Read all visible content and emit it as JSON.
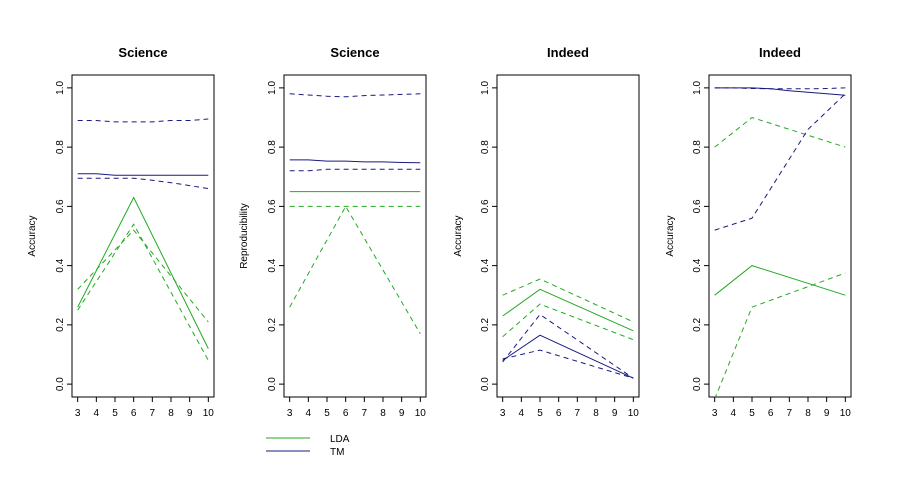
{
  "colors": {
    "LDA": "#22aa22",
    "TM": "#1a1a80"
  },
  "legend": {
    "placement": "bottom-left",
    "entries": [
      {
        "label": "LDA",
        "color": "#22aa22"
      },
      {
        "label": "TM",
        "color": "#1a1a80"
      }
    ]
  },
  "chart_data": [
    {
      "type": "line",
      "title": "Science",
      "xlabel": "",
      "ylabel": "Accuracy",
      "xticks": [
        3,
        4,
        5,
        6,
        7,
        8,
        9,
        10
      ],
      "yticks": [
        "0.0",
        "0.2",
        "0.4",
        "0.6",
        "0.8",
        "1.0"
      ],
      "xlim": [
        3,
        10
      ],
      "ylim": [
        0,
        1
      ],
      "series": [
        {
          "name": "LDA",
          "style": "solid",
          "color": "#22aa22",
          "x": [
            3,
            6,
            10
          ],
          "y": [
            0.26,
            0.63,
            0.12
          ]
        },
        {
          "name": "LDA",
          "style": "dashed",
          "color": "#22aa22",
          "x": [
            3,
            6,
            10
          ],
          "y": [
            0.32,
            0.52,
            0.21
          ]
        },
        {
          "name": "LDA",
          "style": "dashed",
          "color": "#22aa22",
          "x": [
            3,
            6,
            10
          ],
          "y": [
            0.25,
            0.54,
            0.08
          ]
        },
        {
          "name": "TM",
          "style": "solid",
          "color": "#1a1a80",
          "x": [
            3,
            4,
            5,
            6,
            7,
            8,
            9,
            10
          ],
          "y": [
            0.71,
            0.71,
            0.705,
            0.705,
            0.705,
            0.705,
            0.705,
            0.705
          ]
        },
        {
          "name": "TM",
          "style": "dashed",
          "color": "#1a1a80",
          "x": [
            3,
            4,
            5,
            6,
            7,
            8,
            9,
            10
          ],
          "y": [
            0.89,
            0.89,
            0.885,
            0.885,
            0.885,
            0.89,
            0.89,
            0.895
          ]
        },
        {
          "name": "TM",
          "style": "dashed",
          "color": "#1a1a80",
          "x": [
            3,
            4,
            5,
            6,
            7,
            8,
            9,
            10
          ],
          "y": [
            0.695,
            0.695,
            0.695,
            0.695,
            0.688,
            0.68,
            0.67,
            0.66
          ]
        }
      ]
    },
    {
      "type": "line",
      "title": "Science",
      "xlabel": "",
      "ylabel": "Reproducibility",
      "xticks": [
        3,
        4,
        5,
        6,
        7,
        8,
        9,
        10
      ],
      "yticks": [
        "0.0",
        "0.2",
        "0.4",
        "0.6",
        "0.8",
        "1.0"
      ],
      "xlim": [
        3,
        10
      ],
      "ylim": [
        0,
        1
      ],
      "series": [
        {
          "name": "LDA",
          "style": "solid",
          "color": "#22aa22",
          "x": [
            3,
            10
          ],
          "y": [
            0.65,
            0.65
          ]
        },
        {
          "name": "LDA",
          "style": "dashed",
          "color": "#22aa22",
          "x": [
            3,
            10
          ],
          "y": [
            0.6,
            0.6
          ]
        },
        {
          "name": "LDA",
          "style": "dashed",
          "color": "#22aa22",
          "x": [
            3,
            6,
            10
          ],
          "y": [
            0.26,
            0.6,
            0.17
          ]
        },
        {
          "name": "TM",
          "style": "solid",
          "color": "#1a1a80",
          "x": [
            3,
            4,
            5,
            6,
            7,
            8,
            9,
            10
          ],
          "y": [
            0.757,
            0.757,
            0.753,
            0.753,
            0.75,
            0.75,
            0.748,
            0.747
          ]
        },
        {
          "name": "TM",
          "style": "dashed",
          "color": "#1a1a80",
          "x": [
            3,
            4,
            5,
            6,
            7,
            8,
            9,
            10
          ],
          "y": [
            0.98,
            0.976,
            0.972,
            0.97,
            0.974,
            0.976,
            0.978,
            0.98
          ]
        },
        {
          "name": "TM",
          "style": "dashed",
          "color": "#1a1a80",
          "x": [
            3,
            4,
            5,
            6,
            7,
            8,
            9,
            10
          ],
          "y": [
            0.72,
            0.72,
            0.725,
            0.725,
            0.725,
            0.725,
            0.725,
            0.725
          ]
        }
      ]
    },
    {
      "type": "line",
      "title": "Indeed",
      "xlabel": "",
      "ylabel": "Accuracy",
      "xticks": [
        3,
        4,
        5,
        6,
        7,
        8,
        9,
        10
      ],
      "yticks": [
        "0.0",
        "0.2",
        "0.4",
        "0.6",
        "0.8",
        "1.0"
      ],
      "xlim": [
        3,
        10
      ],
      "ylim": [
        0,
        1
      ],
      "series": [
        {
          "name": "LDA",
          "style": "solid",
          "color": "#22aa22",
          "x": [
            3,
            5,
            10
          ],
          "y": [
            0.23,
            0.32,
            0.18
          ]
        },
        {
          "name": "LDA",
          "style": "dashed",
          "color": "#22aa22",
          "x": [
            3,
            5,
            10
          ],
          "y": [
            0.3,
            0.355,
            0.21
          ]
        },
        {
          "name": "LDA",
          "style": "dashed",
          "color": "#22aa22",
          "x": [
            3,
            5,
            10
          ],
          "y": [
            0.16,
            0.27,
            0.15
          ]
        },
        {
          "name": "TM",
          "style": "solid",
          "color": "#1a1a80",
          "x": [
            3,
            5,
            10
          ],
          "y": [
            0.08,
            0.165,
            0.02
          ]
        },
        {
          "name": "TM",
          "style": "dashed",
          "color": "#1a1a80",
          "x": [
            3,
            5,
            10
          ],
          "y": [
            0.075,
            0.235,
            0.02
          ]
        },
        {
          "name": "TM",
          "style": "dashed",
          "color": "#1a1a80",
          "x": [
            3,
            5,
            10
          ],
          "y": [
            0.085,
            0.115,
            0.02
          ]
        }
      ]
    },
    {
      "type": "line",
      "title": "Indeed",
      "xlabel": "",
      "ylabel": "Accuracy",
      "xticks": [
        3,
        4,
        5,
        6,
        7,
        8,
        9,
        10
      ],
      "yticks": [
        "0.0",
        "0.2",
        "0.4",
        "0.6",
        "0.8",
        "1.0"
      ],
      "xlim": [
        3,
        10
      ],
      "ylim": [
        0,
        1
      ],
      "series": [
        {
          "name": "LDA",
          "style": "solid",
          "color": "#22aa22",
          "x": [
            3,
            5,
            10
          ],
          "y": [
            0.3,
            0.4,
            0.3
          ]
        },
        {
          "name": "LDA",
          "style": "dashed",
          "color": "#22aa22",
          "x": [
            3,
            5,
            10
          ],
          "y": [
            0.8,
            0.9,
            0.8
          ]
        },
        {
          "name": "LDA",
          "style": "dashed",
          "color": "#22aa22",
          "x": [
            3,
            5,
            10
          ],
          "y": [
            -0.05,
            0.26,
            0.375
          ]
        },
        {
          "name": "TM",
          "style": "solid",
          "color": "#1a1a80",
          "x": [
            3,
            4,
            5,
            6,
            7,
            8,
            9,
            10
          ],
          "y": [
            1.0,
            1.0,
            1.0,
            0.997,
            0.99,
            0.985,
            0.98,
            0.975
          ]
        },
        {
          "name": "TM",
          "style": "dashed",
          "color": "#1a1a80",
          "x": [
            3,
            4,
            5,
            6,
            7,
            8,
            9,
            10
          ],
          "y": [
            1.0,
            1.0,
            0.998,
            0.997,
            0.997,
            0.997,
            0.998,
            1.0
          ]
        },
        {
          "name": "TM",
          "style": "dashed",
          "color": "#1a1a80",
          "x": [
            3,
            5,
            6,
            7,
            8,
            9,
            10
          ],
          "y": [
            0.52,
            0.56,
            0.66,
            0.76,
            0.86,
            0.92,
            0.98
          ]
        }
      ]
    }
  ]
}
